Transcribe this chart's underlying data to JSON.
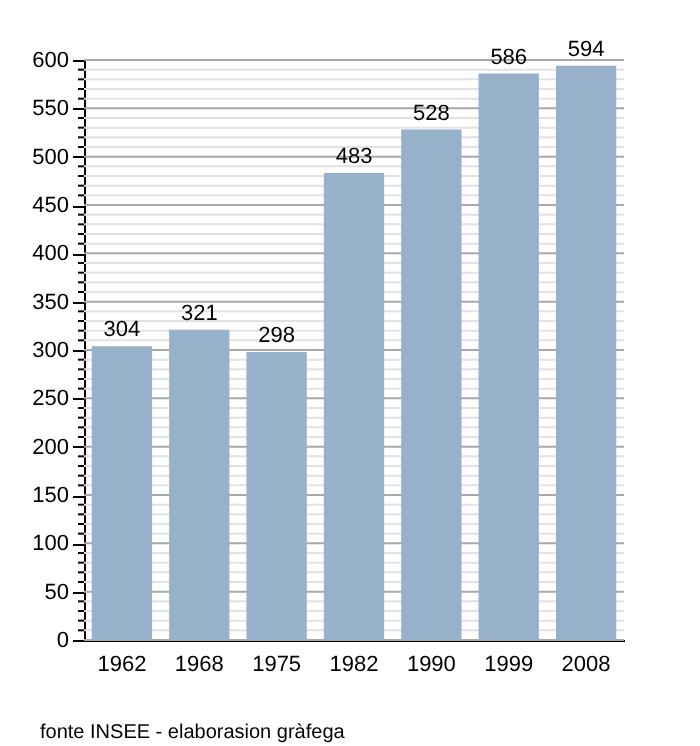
{
  "chart_data": {
    "type": "bar",
    "categories": [
      "1962",
      "1968",
      "1975",
      "1982",
      "1990",
      "1999",
      "2008"
    ],
    "values": [
      304,
      321,
      298,
      483,
      528,
      586,
      594
    ],
    "color": "#98b1cb",
    "data_labels": true,
    "grid": "y",
    "ylim": [
      0,
      600
    ],
    "yticks": [
      0,
      {
        "value": 10,
        "label": null
      },
      {
        "value": 20,
        "label": null
      },
      {
        "value": 30,
        "label": null
      },
      {
        "value": 40,
        "label": null
      },
      50,
      {
        "value": 60,
        "label": null
      },
      {
        "value": 70,
        "label": null
      },
      {
        "value": 80,
        "label": null
      },
      {
        "value": 90,
        "label": null
      },
      100,
      {
        "value": 110,
        "label": null
      },
      {
        "value": 120,
        "label": null
      },
      {
        "value": 130,
        "label": null
      },
      {
        "value": 140,
        "label": null
      },
      150,
      {
        "value": 160,
        "label": null
      },
      {
        "value": 170,
        "label": null
      },
      {
        "value": 180,
        "label": null
      },
      {
        "value": 190,
        "label": null
      },
      200,
      {
        "value": 210,
        "label": null
      },
      {
        "value": 220,
        "label": null
      },
      {
        "value": 230,
        "label": null
      },
      {
        "value": 240,
        "label": null
      },
      250,
      {
        "value": 260,
        "label": null
      },
      {
        "value": 270,
        "label": null
      },
      {
        "value": 280,
        "label": null
      },
      {
        "value": 290,
        "label": null
      },
      300,
      {
        "value": 310,
        "label": null
      },
      {
        "value": 320,
        "label": null
      },
      {
        "value": 330,
        "label": null
      },
      {
        "value": 340,
        "label": null
      },
      350,
      {
        "value": 360,
        "label": null
      },
      {
        "value": 370,
        "label": null
      },
      {
        "value": 380,
        "label": null
      },
      {
        "value": 390,
        "label": null
      },
      400,
      {
        "value": 410,
        "label": null
      },
      {
        "value": 420,
        "label": null
      },
      {
        "value": 430,
        "label": null
      },
      {
        "value": 440,
        "label": null
      },
      450,
      {
        "value": 460,
        "label": null
      },
      {
        "value": 470,
        "label": null
      },
      {
        "value": 480,
        "label": null
      },
      {
        "value": 490,
        "label": null
      },
      500,
      {
        "value": 510,
        "label": null
      },
      {
        "value": 520,
        "label": null
      },
      {
        "value": 530,
        "label": null
      },
      {
        "value": 540,
        "label": null
      },
      550,
      {
        "value": 560,
        "label": null
      },
      {
        "value": 570,
        "label": null
      },
      {
        "value": 580,
        "label": null
      },
      {
        "value": 590,
        "label": null
      },
      600
    ],
    "annotations": [
      "fonte INSEE - elaborasion gràfega"
    ]
  }
}
